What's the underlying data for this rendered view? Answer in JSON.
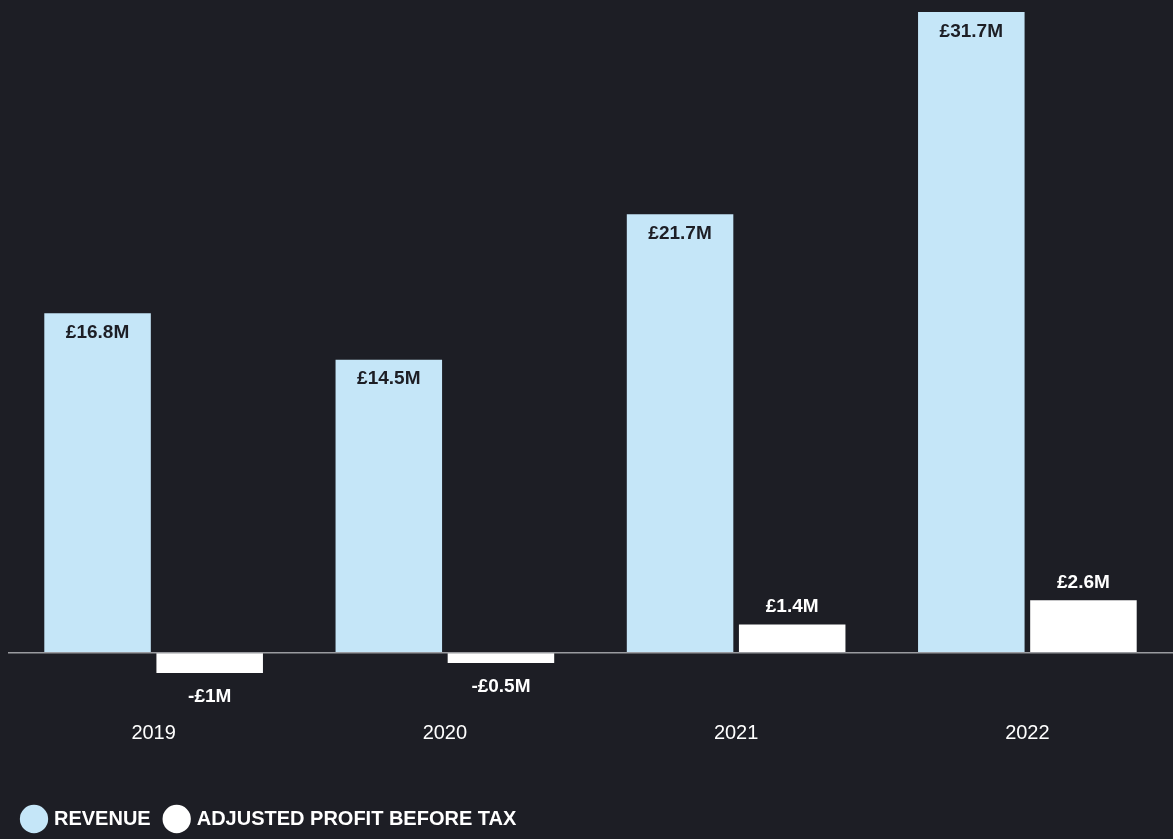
{
  "chart_data": {
    "type": "bar",
    "categories": [
      "2019",
      "2020",
      "2021",
      "2022"
    ],
    "series": [
      {
        "name": "REVENUE",
        "color": "#c5e6f8",
        "values": [
          16.8,
          14.5,
          21.7,
          31.7
        ],
        "value_labels": [
          "£16.8M",
          "£14.5M",
          "£21.7M",
          "£31.7M"
        ]
      },
      {
        "name": "ADJUSTED PROFIT BEFORE TAX",
        "color": "#ffffff",
        "values": [
          -1,
          -0.5,
          1.4,
          2.6
        ],
        "value_labels": [
          "-£1M",
          "-£0.5M",
          "£1.4M",
          "£2.6M"
        ]
      }
    ],
    "legend": "bottom left"
  }
}
